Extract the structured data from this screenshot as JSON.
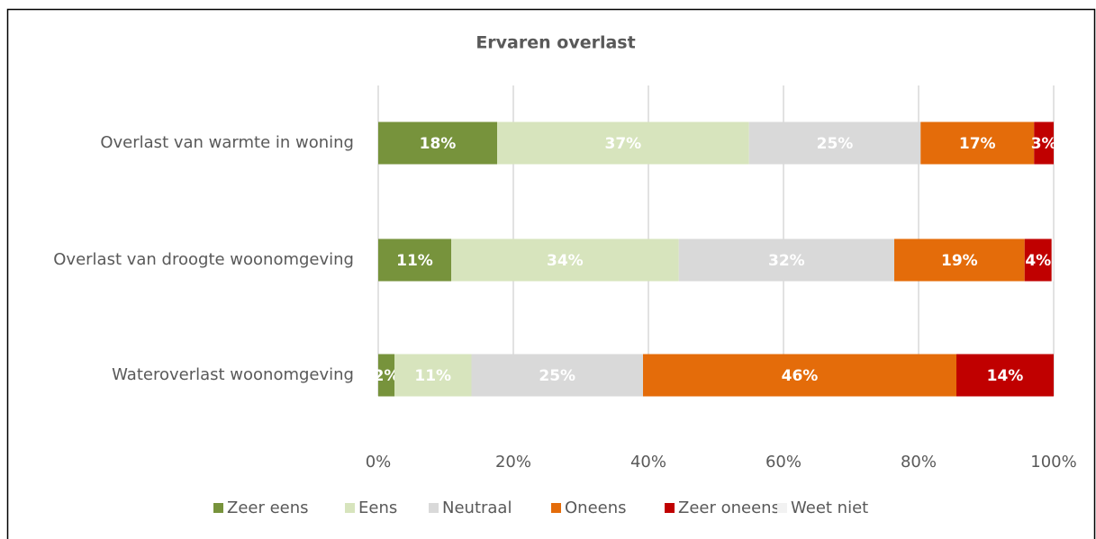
{
  "chart_data": {
    "type": "stacked-bar-horizontal",
    "title": "Ervaren overlast",
    "categories": [
      "Overlast van warmte in woning",
      "Overlast van droogte woonomgeving",
      "Wateroverlast woonomgeving"
    ],
    "series": [
      {
        "name": "Zeer eens",
        "color": "#77933c",
        "values": [
          17.6,
          10.8,
          2.4
        ],
        "value_labels": [
          "18%",
          "11%",
          "2%"
        ]
      },
      {
        "name": "Eens",
        "color": "#d7e4bd",
        "values": [
          37.3,
          33.7,
          11.4
        ],
        "value_labels": [
          "37%",
          "34%",
          "11%"
        ]
      },
      {
        "name": "Neutraal",
        "color": "#d9d9d9",
        "values": [
          25.4,
          31.9,
          25.4
        ],
        "value_labels": [
          "25%",
          "32%",
          "25%"
        ]
      },
      {
        "name": "Oneens",
        "color": "#e46c0a",
        "values": [
          16.8,
          19.3,
          46.4
        ],
        "value_labels": [
          "17%",
          "19%",
          "46%"
        ]
      },
      {
        "name": "Zeer oneens",
        "color": "#c00000",
        "values": [
          2.9,
          4.0,
          14.4
        ],
        "value_labels": [
          "3%",
          "4%",
          "14%"
        ]
      },
      {
        "name": "Weet niet",
        "color": "#f2f2f2",
        "values": [
          0,
          0.3,
          0
        ]
      }
    ],
    "xlim": [
      0,
      100
    ],
    "xticks": [
      {
        "value": 0,
        "label": "0%"
      },
      {
        "value": 20,
        "label": "20%"
      },
      {
        "value": 40,
        "label": "40%"
      },
      {
        "value": 60,
        "label": "60%"
      },
      {
        "value": 80,
        "label": "80%"
      },
      {
        "value": 100,
        "label": "100%"
      }
    ],
    "grid": true,
    "legend": "bottom"
  }
}
